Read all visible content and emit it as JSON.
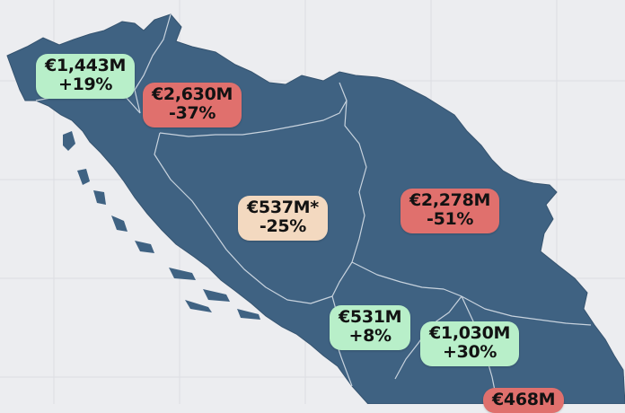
{
  "colors": {
    "background": "#ecedf0",
    "grid": "#dcdde2",
    "land": "#3f6282",
    "border": "#c8d3de",
    "positive": "#b8efc9",
    "negative": "#e0706d",
    "neutral": "#f3d9c0"
  },
  "regions": [
    {
      "amount": "€1,443M",
      "change": "+19%",
      "tone": "positive"
    },
    {
      "amount": "€2,630M",
      "change": "-37%",
      "tone": "negative"
    },
    {
      "amount": "€537M*",
      "change": "-25%",
      "tone": "neutral"
    },
    {
      "amount": "€2,278M",
      "change": "-51%",
      "tone": "negative"
    },
    {
      "amount": "€531M",
      "change": "+8%",
      "tone": "positive"
    },
    {
      "amount": "€1,030M",
      "change": "+30%",
      "tone": "positive"
    },
    {
      "amount": "€468M",
      "change": "",
      "tone": "negative"
    }
  ]
}
